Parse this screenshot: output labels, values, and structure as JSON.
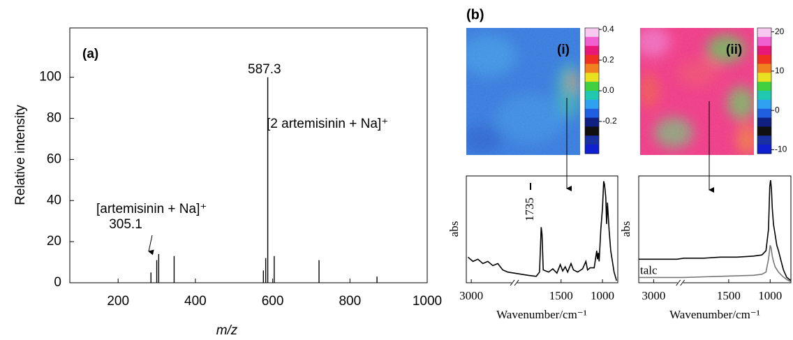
{
  "chart_data": [
    {
      "type": "stem",
      "xlabel": "m/z",
      "ylabel": "Relative intensity",
      "annotations": [
        "(a)",
        "587.3",
        "[2 artemisinin + Na]⁺",
        "[artemisinin + Na]⁺",
        "305.1"
      ],
      "x": [
        285,
        300,
        305.1,
        345,
        576,
        582,
        587.3,
        604,
        720,
        870
      ],
      "values": [
        5,
        11,
        14,
        13,
        6,
        12,
        100,
        13,
        11,
        3
      ],
      "color": "#000000",
      "xlim": [
        75,
        1000
      ],
      "xticks": [
        200,
        400,
        600,
        800,
        1000
      ],
      "ylim": [
        0,
        124
      ],
      "yticks": [
        0,
        20,
        40,
        60,
        80,
        100
      ]
    },
    {
      "type": "image",
      "panel": "(b)",
      "label": "(i)",
      "clim": [
        -0.41,
        0.41
      ],
      "cticks": [
        0.4,
        0.2,
        {
          "value": 0,
          "label": "0.0"
        },
        -0.2
      ],
      "colors": [
        "#f7c8f0",
        "#f060d0",
        "#e8187a",
        "#f03020",
        "#f08020",
        "#e8e020",
        "#40d040",
        "#20c8b0",
        "#30a0f0",
        "#2060e0",
        "#102080",
        "#101010",
        "#1830a0",
        "#1020d0"
      ]
    },
    {
      "type": "image",
      "label": "(ii)",
      "clim": [
        -11,
        21
      ],
      "cticks": [
        20,
        10,
        0,
        -10
      ],
      "colors": [
        "#f7c8f0",
        "#f060d0",
        "#e8187a",
        "#f03020",
        "#f08020",
        "#e8e020",
        "#40d040",
        "#20c8b0",
        "#30a0f0",
        "#2060e0",
        "#102080",
        "#101010",
        "#1830a0",
        "#1020d0"
      ]
    },
    {
      "type": "line",
      "xlabel": "Wavenumber/cm⁻¹",
      "ylabel": "abs",
      "annotation": "1735",
      "xlim": [
        3060,
        815
      ],
      "xbreak": [
        2520,
        2020
      ],
      "xticks": [
        3000,
        1500,
        1000
      ],
      "ylim": [
        0,
        100
      ],
      "series": [
        {
          "color": "#000000",
          "x": [
            3040,
            2980,
            2920,
            2860,
            2800,
            2740,
            2680,
            2620,
            2560,
            1980,
            1900,
            1800,
            1760,
            1740,
            1730,
            1715,
            1650,
            1600,
            1550,
            1510,
            1480,
            1450,
            1420,
            1380,
            1350,
            1300,
            1240,
            1200,
            1180,
            1150,
            1100,
            1070,
            1060,
            1050,
            1040,
            1020,
            1000,
            985,
            975,
            960,
            950,
            940,
            920,
            900,
            880,
            860,
            830
          ],
          "values": [
            24,
            20,
            22,
            18,
            20,
            16,
            18,
            12,
            10,
            8,
            7,
            6,
            10,
            52,
            45,
            12,
            10,
            13,
            9,
            17,
            11,
            15,
            10,
            18,
            12,
            10,
            13,
            20,
            12,
            14,
            14,
            30,
            22,
            28,
            20,
            50,
            70,
            95,
            92,
            80,
            55,
            75,
            50,
            30,
            20,
            10,
            2
          ]
        }
      ]
    },
    {
      "type": "line",
      "xlabel": "Wavenumber/cm⁻¹",
      "ylabel": "abs",
      "xlim": [
        3180,
        750
      ],
      "xbreak": [
        2720,
        2040
      ],
      "xticks": [
        3000,
        1500,
        1000
      ],
      "ylim": [
        0,
        100
      ],
      "series": [
        {
          "color": "#000000",
          "x": [
            3180,
            2900,
            2720,
            2040,
            1800,
            1600,
            1400,
            1200,
            1100,
            1050,
            1020,
            1005,
            995,
            985,
            975,
            960,
            940,
            920,
            900,
            880,
            860,
            840,
            800,
            750
          ],
          "values": [
            22,
            22,
            22,
            23,
            23,
            24,
            24,
            25,
            26,
            30,
            50,
            90,
            96,
            88,
            70,
            55,
            45,
            35,
            30,
            24,
            18,
            12,
            5,
            2
          ]
        },
        {
          "name": "talc",
          "color": "#777777",
          "x": [
            3180,
            2720,
            2040,
            1600,
            1200,
            1100,
            1050,
            1020,
            1000,
            990,
            975,
            960,
            940,
            900,
            850,
            800,
            750
          ],
          "values": [
            5,
            5,
            5,
            6,
            7,
            8,
            10,
            22,
            35,
            33,
            25,
            20,
            15,
            10,
            6,
            3,
            1
          ]
        }
      ]
    }
  ]
}
